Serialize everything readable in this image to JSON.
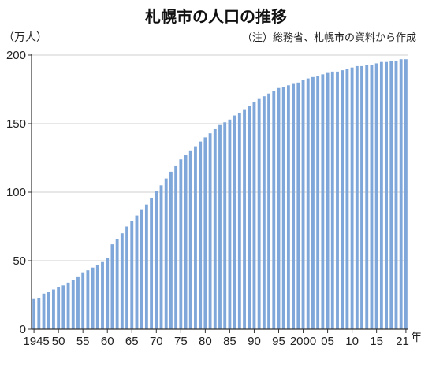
{
  "chart_data": {
    "type": "bar",
    "title": "札幌市の人口の推移",
    "unit_label": "（万人）",
    "source_note": "（注）総務省、札幌市の資料から作成",
    "x_unit": "年",
    "bar_color": "#7fa7d9",
    "ylim": [
      0,
      200
    ],
    "y_ticks": [
      0,
      50,
      100,
      150,
      200
    ],
    "y_tick_labels": [
      "0",
      "50",
      "100",
      "150",
      "200"
    ],
    "grid": "horizontal",
    "x_tick_labels": [
      {
        "year": 1945,
        "label": "1945"
      },
      {
        "year": 1950,
        "label": "50"
      },
      {
        "year": 1955,
        "label": "55"
      },
      {
        "year": 1960,
        "label": "60"
      },
      {
        "year": 1965,
        "label": "65"
      },
      {
        "year": 1970,
        "label": "70"
      },
      {
        "year": 1975,
        "label": "75"
      },
      {
        "year": 1980,
        "label": "80"
      },
      {
        "year": 1985,
        "label": "85"
      },
      {
        "year": 1990,
        "label": "90"
      },
      {
        "year": 1995,
        "label": "95"
      },
      {
        "year": 2000,
        "label": "2000"
      },
      {
        "year": 2005,
        "label": "05"
      },
      {
        "year": 2010,
        "label": "10"
      },
      {
        "year": 2015,
        "label": "15"
      },
      {
        "year": 2021,
        "label": "21"
      }
    ],
    "years": [
      1945,
      1946,
      1947,
      1948,
      1949,
      1950,
      1951,
      1952,
      1953,
      1954,
      1955,
      1956,
      1957,
      1958,
      1959,
      1960,
      1961,
      1962,
      1963,
      1964,
      1965,
      1966,
      1967,
      1968,
      1969,
      1970,
      1971,
      1972,
      1973,
      1974,
      1975,
      1976,
      1977,
      1978,
      1979,
      1980,
      1981,
      1982,
      1983,
      1984,
      1985,
      1986,
      1987,
      1988,
      1989,
      1990,
      1991,
      1992,
      1993,
      1994,
      1995,
      1996,
      1997,
      1998,
      1999,
      2000,
      2001,
      2002,
      2003,
      2004,
      2005,
      2006,
      2007,
      2008,
      2009,
      2010,
      2011,
      2012,
      2013,
      2014,
      2015,
      2016,
      2017,
      2018,
      2019,
      2020,
      2021
    ],
    "values": [
      22,
      23,
      26,
      27,
      29,
      31,
      32,
      34,
      36,
      38,
      41,
      43,
      45,
      47,
      49,
      52,
      62,
      66,
      70,
      75,
      79,
      83,
      87,
      91,
      96,
      101,
      105,
      110,
      115,
      119,
      124,
      127,
      130,
      133,
      137,
      140,
      143,
      146,
      149,
      151,
      153,
      156,
      158,
      160,
      163,
      166,
      168,
      170,
      172,
      174,
      176,
      177,
      178,
      179,
      180,
      182,
      183,
      184,
      185,
      186,
      187,
      188,
      188,
      189,
      190,
      191,
      192,
      192,
      193,
      193,
      194,
      195,
      195,
      196,
      196,
      197,
      197
    ]
  }
}
